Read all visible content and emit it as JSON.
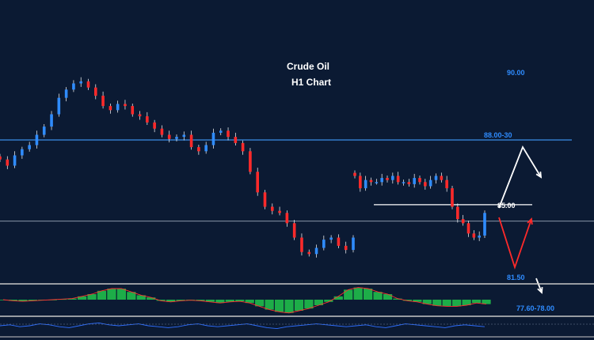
{
  "chart_data": {
    "type": "candlestick",
    "title": "Crude Oil",
    "subtitle": "H1 Chart",
    "levels": [
      {
        "label": "90.00",
        "value": 90.0,
        "color": "#2f8cff"
      },
      {
        "label": "88.00-30",
        "value": 88.15,
        "color": "#2f8cff"
      },
      {
        "label": "85.00",
        "value": 85.0,
        "color": "#ffffff"
      },
      {
        "label": "81.50",
        "value": 81.5,
        "color": "#2f8cff"
      },
      {
        "label": "77.60-78.00",
        "value": 77.8,
        "color": "#2f8cff"
      }
    ],
    "horizontal_lines": [
      {
        "kind": "resistance",
        "value": 88.15,
        "color": "#3a8ee6"
      },
      {
        "kind": "pivot",
        "value": 85.0,
        "color": "#ffffff"
      },
      {
        "kind": "reference",
        "value": 84.2,
        "color": "#9aa7b8"
      }
    ],
    "close_path": [
      87.2,
      86.9,
      87.4,
      87.7,
      87.9,
      88.4,
      88.8,
      89.4,
      90.2,
      90.6,
      90.9,
      91.0,
      90.7,
      90.3,
      89.8,
      89.6,
      89.9,
      89.8,
      89.4,
      89.3,
      89.0,
      88.7,
      88.4,
      88.2,
      88.3,
      88.4,
      87.8,
      87.6,
      87.9,
      88.5,
      88.6,
      88.3,
      88.0,
      87.6,
      86.6,
      85.6,
      84.9,
      84.7,
      84.6,
      84.1,
      83.4,
      82.7,
      82.6,
      82.9,
      83.3,
      83.4,
      83.0,
      82.8,
      83.4
    ],
    "close_path_2": [
      86.4,
      85.8,
      86.2,
      86.1,
      86.1,
      86.3,
      86.2,
      86.4,
      86.1,
      86.1,
      86.0,
      86.3,
      86.1,
      85.9,
      86.2,
      86.4,
      86.2,
      85.8,
      84.9,
      84.3,
      84.1,
      83.6,
      83.4,
      83.5,
      84.6
    ],
    "projections": [
      {
        "color": "#ffffff",
        "points": [
          [
            0,
            85.0
          ],
          [
            1,
            88.4
          ],
          [
            2,
            87.2
          ]
        ]
      },
      {
        "color": "#ff2a2a",
        "points": [
          [
            0,
            85.0
          ],
          [
            1,
            81.9
          ],
          [
            2,
            85.4
          ]
        ]
      },
      {
        "color": "#ffffff",
        "points": [
          [
            0,
            81.0
          ],
          [
            1,
            80.5
          ]
        ]
      }
    ],
    "oscillator": {
      "type": "histogram",
      "colors": {
        "positive": "#1fbe4a",
        "negative": "#1fbe4a",
        "signal": "#ff3030"
      },
      "values": [
        0.0,
        -0.1,
        -0.15,
        -0.1,
        -0.05,
        0.0,
        0.05,
        0.1,
        0.3,
        0.5,
        0.8,
        1.0,
        1.0,
        0.7,
        0.4,
        0.2,
        -0.1,
        -0.2,
        -0.1,
        -0.05,
        -0.1,
        -0.2,
        -0.3,
        -0.2,
        -0.15,
        -0.3,
        -0.6,
        -0.9,
        -1.1,
        -1.2,
        -1.0,
        -0.8,
        -0.5,
        -0.2,
        0.3,
        0.9,
        1.1,
        1.0,
        0.7,
        0.5,
        0.1,
        -0.1,
        -0.2,
        -0.4,
        -0.55,
        -0.6,
        -0.6,
        -0.5,
        -0.3,
        -0.4
      ]
    },
    "lower_indicator": {
      "color": "#2f6fff",
      "values": [
        0.5,
        0.6,
        0.4,
        0.5,
        0.7,
        0.6,
        0.4,
        0.3,
        0.5,
        0.7,
        0.8,
        0.6,
        0.5,
        0.6,
        0.7,
        0.5,
        0.4,
        0.3,
        0.4,
        0.6,
        0.7,
        0.5,
        0.4,
        0.5,
        0.6,
        0.7,
        0.5,
        0.3,
        0.2,
        0.4,
        0.5,
        0.6,
        0.7,
        0.6,
        0.5,
        0.4,
        0.5,
        0.6,
        0.4,
        0.3,
        0.5,
        0.7,
        0.6,
        0.5,
        0.4,
        0.3,
        0.5,
        0.6,
        0.5,
        0.4
      ]
    },
    "candle_colors": {
      "up": "#2f8cff",
      "down": "#ff2a2a",
      "wick": "#ffffff"
    },
    "grid": false,
    "legend": "none"
  }
}
